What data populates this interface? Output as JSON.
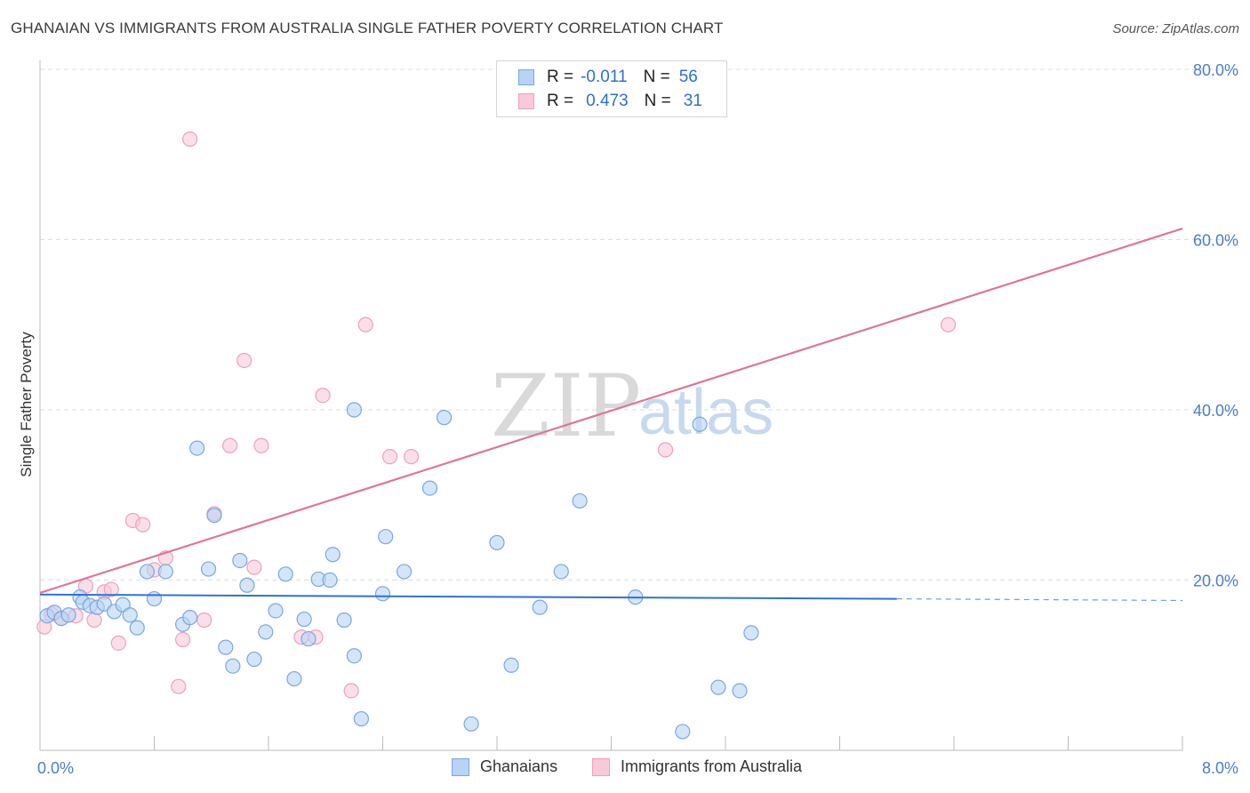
{
  "header": {
    "title": "GHANAIAN VS IMMIGRANTS FROM AUSTRALIA SINGLE FATHER POVERTY CORRELATION CHART",
    "source": "Source: ZipAtlas.com"
  },
  "watermark": {
    "zip": "ZIP",
    "atlas": "atlas"
  },
  "legend": {
    "rows": [
      {
        "r_label": "R =",
        "r_value": "-0.011",
        "n_label": "N =",
        "n_value": "56"
      },
      {
        "r_label": "R =",
        "r_value": "0.473",
        "n_label": "N =",
        "n_value": "31"
      }
    ]
  },
  "bottom_legend": {
    "series1": "Ghanaians",
    "series2": "Immigrants from Australia"
  },
  "colors": {
    "blue_fill": "#b8d3f4",
    "blue_stroke": "#7aa7e0",
    "blue_line": "#2f72d6",
    "pink_fill": "#f8c9d8",
    "pink_stroke": "#eea1ba",
    "pink_line": "#e0749b",
    "grid": "#dddddd",
    "axis_text": "#4a7fcb"
  },
  "chart_data": {
    "type": "scatter",
    "title": "GHANAIAN VS IMMIGRANTS FROM AUSTRALIA SINGLE FATHER POVERTY CORRELATION CHART",
    "xlabel": "",
    "ylabel": "Single Father Poverty",
    "xlim": [
      0,
      8
    ],
    "ylim": [
      0,
      80
    ],
    "x_tick_labels": [
      "0.0%",
      "8.0%"
    ],
    "y_ticks": [
      20,
      40,
      60,
      80
    ],
    "y_tick_labels": [
      "20.0%",
      "40.0%",
      "60.0%",
      "80.0%"
    ],
    "grid": true,
    "series": [
      {
        "name": "Ghanaians",
        "r": -0.011,
        "n": 56,
        "trend": {
          "x0": 0,
          "y0": 18.3,
          "x1": 6.0,
          "y1": 17.8,
          "dashed_to_x": 8.0,
          "dashed_y": 17.6
        },
        "points": [
          [
            0.05,
            15.8
          ],
          [
            0.1,
            16.2
          ],
          [
            0.15,
            15.5
          ],
          [
            0.2,
            15.9
          ],
          [
            0.28,
            18.0
          ],
          [
            0.3,
            17.4
          ],
          [
            0.35,
            17.0
          ],
          [
            0.4,
            16.8
          ],
          [
            0.45,
            17.2
          ],
          [
            0.52,
            16.3
          ],
          [
            0.58,
            17.1
          ],
          [
            0.63,
            15.9
          ],
          [
            0.68,
            14.4
          ],
          [
            0.75,
            21.0
          ],
          [
            0.8,
            17.8
          ],
          [
            0.88,
            21.0
          ],
          [
            1.0,
            14.8
          ],
          [
            1.05,
            15.6
          ],
          [
            1.1,
            35.5
          ],
          [
            1.18,
            21.3
          ],
          [
            1.22,
            27.6
          ],
          [
            1.3,
            12.1
          ],
          [
            1.35,
            9.9
          ],
          [
            1.4,
            22.3
          ],
          [
            1.45,
            19.4
          ],
          [
            1.5,
            10.7
          ],
          [
            1.58,
            13.9
          ],
          [
            1.65,
            16.4
          ],
          [
            1.72,
            20.7
          ],
          [
            1.78,
            8.4
          ],
          [
            1.85,
            15.4
          ],
          [
            1.88,
            13.1
          ],
          [
            1.95,
            20.1
          ],
          [
            2.03,
            20.0
          ],
          [
            2.05,
            23.0
          ],
          [
            2.13,
            15.3
          ],
          [
            2.2,
            11.1
          ],
          [
            2.25,
            3.7
          ],
          [
            2.2,
            40.0
          ],
          [
            2.4,
            18.4
          ],
          [
            2.42,
            25.1
          ],
          [
            2.55,
            21.0
          ],
          [
            2.73,
            30.8
          ],
          [
            2.83,
            39.1
          ],
          [
            3.02,
            3.1
          ],
          [
            3.2,
            24.4
          ],
          [
            3.3,
            10.0
          ],
          [
            3.5,
            16.8
          ],
          [
            3.65,
            21.0
          ],
          [
            3.78,
            29.3
          ],
          [
            4.17,
            18.0
          ],
          [
            4.5,
            2.2
          ],
          [
            4.62,
            38.3
          ],
          [
            4.75,
            7.4
          ],
          [
            4.9,
            7.0
          ],
          [
            4.98,
            13.8
          ]
        ]
      },
      {
        "name": "Immigrants from Australia",
        "r": 0.473,
        "n": 31,
        "trend": {
          "x0": 0,
          "y0": 18.5,
          "x1": 8.0,
          "y1": 61.3
        },
        "points": [
          [
            0.03,
            14.5
          ],
          [
            0.08,
            16.0
          ],
          [
            0.15,
            15.5
          ],
          [
            0.25,
            15.8
          ],
          [
            0.32,
            19.3
          ],
          [
            0.38,
            15.3
          ],
          [
            0.45,
            18.6
          ],
          [
            0.5,
            18.9
          ],
          [
            0.55,
            12.6
          ],
          [
            0.65,
            27.0
          ],
          [
            0.72,
            26.5
          ],
          [
            0.8,
            21.2
          ],
          [
            0.88,
            22.6
          ],
          [
            0.97,
            7.5
          ],
          [
            1.0,
            13.0
          ],
          [
            1.05,
            71.8
          ],
          [
            1.15,
            15.3
          ],
          [
            1.22,
            27.8
          ],
          [
            1.33,
            35.8
          ],
          [
            1.43,
            45.8
          ],
          [
            1.5,
            21.5
          ],
          [
            1.55,
            35.8
          ],
          [
            1.83,
            13.3
          ],
          [
            1.93,
            13.3
          ],
          [
            1.98,
            41.7
          ],
          [
            2.18,
            7.0
          ],
          [
            2.28,
            50.0
          ],
          [
            2.45,
            34.5
          ],
          [
            2.6,
            34.5
          ],
          [
            4.38,
            35.3
          ],
          [
            6.36,
            50.0
          ]
        ]
      }
    ]
  }
}
